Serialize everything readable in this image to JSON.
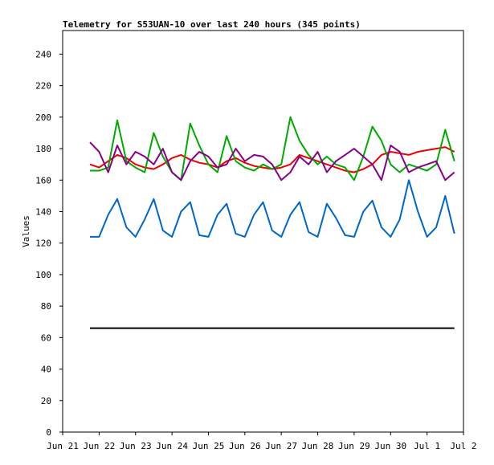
{
  "chart_data": {
    "type": "line",
    "title": "Telemetry for S53UAN-10 over last 240 hours (345 points)",
    "y_label": "Values",
    "x": [
      0.75,
      1,
      1.25,
      1.5,
      1.75,
      2,
      2.25,
      2.5,
      2.75,
      3,
      3.25,
      3.5,
      3.75,
      4,
      4.25,
      4.5,
      4.75,
      5,
      5.25,
      5.5,
      5.75,
      6,
      6.25,
      6.5,
      6.75,
      7,
      7.25,
      7.5,
      7.75,
      8,
      8.25,
      8.5,
      8.75,
      9,
      9.25,
      9.5,
      9.75,
      10,
      10.25,
      10.5,
      10.75
    ],
    "series": [
      {
        "color": "#000000",
        "values": [
          66,
          66,
          66,
          66,
          66,
          66,
          66,
          66,
          66,
          66,
          66,
          66,
          66,
          66,
          66,
          66,
          66,
          66,
          66,
          66,
          66,
          66,
          66,
          66,
          66,
          66,
          66,
          66,
          66,
          66,
          66,
          66,
          66,
          66,
          66,
          66,
          66,
          66,
          66,
          66,
          66
        ]
      },
      {
        "color": "#0066cc",
        "values": [
          124,
          124,
          138,
          148,
          130,
          124,
          135,
          148,
          128,
          124,
          140,
          146,
          125,
          124,
          138,
          145,
          126,
          124,
          138,
          146,
          128,
          124,
          138,
          146,
          127,
          124,
          145,
          136,
          125,
          124,
          140,
          147,
          130,
          124,
          135,
          160,
          140,
          124,
          130,
          150,
          126
        ]
      },
      {
        "color": "#ee0000",
        "values": [
          170,
          168,
          172,
          176,
          174,
          170,
          168,
          167,
          170,
          174,
          176,
          173,
          171,
          170,
          168,
          172,
          174,
          171,
          169,
          168,
          167,
          168,
          170,
          176,
          174,
          172,
          170,
          168,
          166,
          165,
          167,
          170,
          176,
          178,
          177,
          176,
          178,
          179,
          180,
          181,
          178
        ]
      },
      {
        "color": "#00aa00",
        "values": [
          166,
          166,
          168,
          198,
          172,
          168,
          165,
          190,
          175,
          165,
          160,
          196,
          182,
          170,
          165,
          188,
          172,
          168,
          166,
          170,
          167,
          170,
          200,
          185,
          176,
          170,
          175,
          170,
          168,
          160,
          175,
          194,
          185,
          170,
          165,
          170,
          168,
          166,
          170,
          192,
          172
        ]
      },
      {
        "color": "#880088",
        "values": [
          184,
          178,
          165,
          182,
          170,
          178,
          175,
          170,
          180,
          165,
          160,
          172,
          178,
          175,
          168,
          170,
          180,
          172,
          176,
          175,
          170,
          160,
          165,
          175,
          170,
          178,
          165,
          172,
          176,
          180,
          175,
          170,
          160,
          182,
          178,
          165,
          168,
          170,
          172,
          160,
          165
        ]
      }
    ],
    "xlim": [
      0,
      11
    ],
    "xticks": [
      {
        "value": 0,
        "label": "Jun 21"
      },
      {
        "value": 1,
        "label": "Jun 22"
      },
      {
        "value": 2,
        "label": "Jun 23"
      },
      {
        "value": 3,
        "label": "Jun 24"
      },
      {
        "value": 4,
        "label": "Jun 25"
      },
      {
        "value": 5,
        "label": "Jun 26"
      },
      {
        "value": 6,
        "label": "Jun 27"
      },
      {
        "value": 7,
        "label": "Jun 28"
      },
      {
        "value": 8,
        "label": "Jun 29"
      },
      {
        "value": 9,
        "label": "Jun 30"
      },
      {
        "value": 10,
        "label": "Jul 1"
      },
      {
        "value": 11,
        "label": "Jul 2"
      }
    ],
    "ylim": [
      0,
      255
    ],
    "yticks": [
      0,
      20,
      40,
      60,
      80,
      100,
      120,
      140,
      160,
      180,
      200,
      220,
      240
    ]
  }
}
